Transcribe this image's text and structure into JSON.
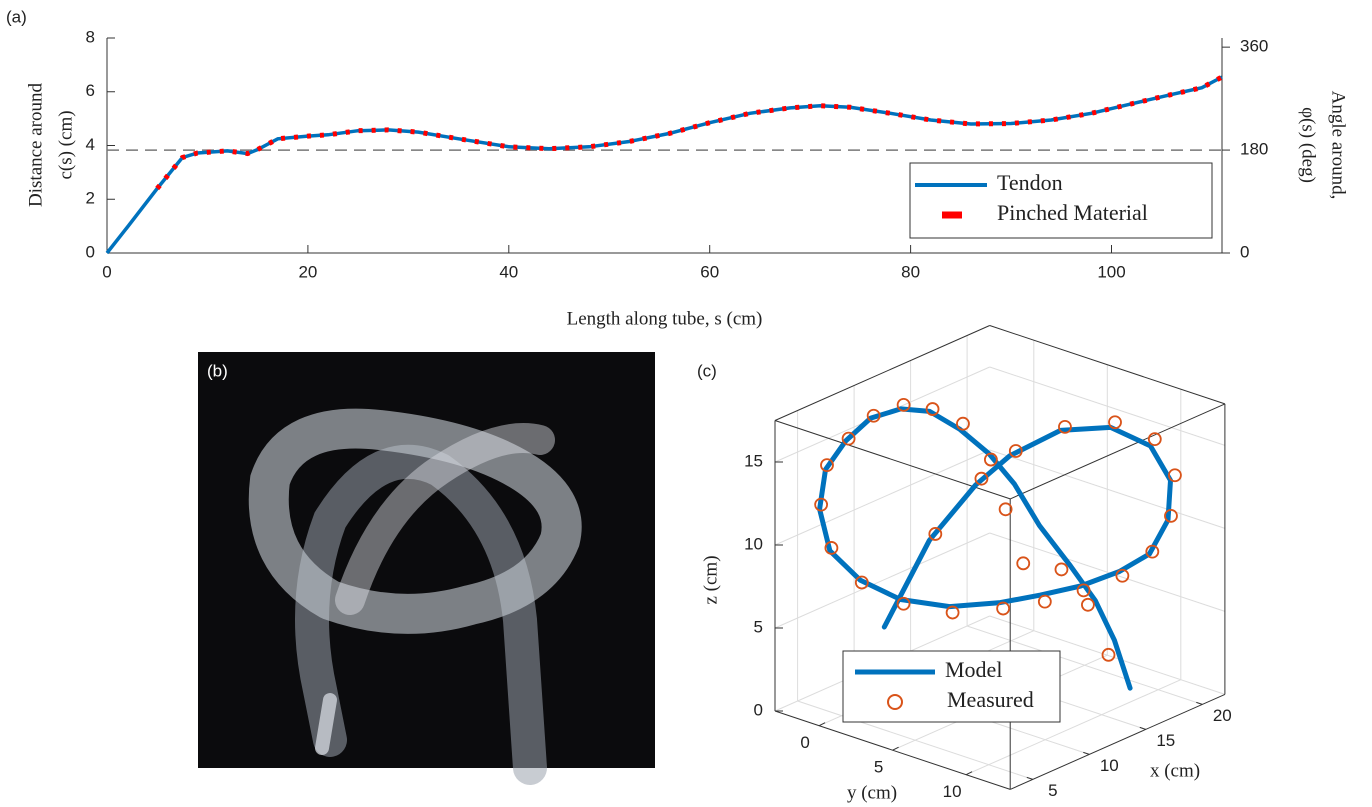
{
  "chart_data": [
    {
      "type": "line",
      "panel_label": "(a)",
      "xlabel": "Length along tube, s (cm)",
      "ylabel": [
        "Distance around",
        "c(s) (cm)"
      ],
      "y2label": [
        "Angle around,",
        "φ(s) (deg)"
      ],
      "xlim": [
        0,
        111
      ],
      "xticks": [
        0,
        20,
        40,
        60,
        80,
        100
      ],
      "ylim": [
        0,
        8
      ],
      "yticks": [
        0,
        2,
        4,
        6,
        8
      ],
      "y2lim": [
        0,
        376
      ],
      "y2ticks": [
        0,
        180,
        360
      ],
      "reference_line": {
        "value": 180,
        "axis": "y2",
        "color": "#777777"
      },
      "legend": "lower right",
      "x": [
        0,
        2,
        5,
        7.5,
        9,
        12,
        14,
        15,
        17,
        20,
        22,
        25,
        28,
        31,
        35,
        40,
        44,
        48,
        52,
        56,
        60,
        64,
        68,
        71,
        74,
        78,
        82,
        86,
        90,
        94,
        98,
        102,
        106,
        109,
        111
      ],
      "series": [
        {
          "name": "Tendon",
          "color": "#0072BD",
          "style": "solid",
          "values": [
            0,
            0.95,
            2.4,
            3.55,
            3.72,
            3.8,
            3.7,
            3.85,
            4.25,
            4.35,
            4.4,
            4.55,
            4.58,
            4.5,
            4.25,
            3.95,
            3.88,
            3.95,
            4.15,
            4.45,
            4.85,
            5.2,
            5.4,
            5.48,
            5.42,
            5.2,
            4.95,
            4.8,
            4.82,
            4.95,
            5.2,
            5.55,
            5.9,
            6.15,
            6.55
          ]
        },
        {
          "name": "Pinched Material",
          "color": "#FF0000",
          "style": "dashed",
          "values": [
            null,
            null,
            2.4,
            3.55,
            3.72,
            3.8,
            3.7,
            3.85,
            4.25,
            4.35,
            4.4,
            4.55,
            4.58,
            4.5,
            4.25,
            3.95,
            3.88,
            3.95,
            4.15,
            4.45,
            4.85,
            5.2,
            5.4,
            5.48,
            5.42,
            5.2,
            4.95,
            4.8,
            4.82,
            4.95,
            5.2,
            5.55,
            5.9,
            6.15,
            6.55
          ]
        }
      ]
    },
    {
      "type": "line3d",
      "panel_label": "(c)",
      "xlabel": "x (cm)",
      "ylabel": "y (cm)",
      "zlabel": "z (cm)",
      "xlim": [
        3,
        22
      ],
      "xticks": [
        5,
        10,
        15,
        20
      ],
      "ylim": [
        -3,
        13
      ],
      "yticks": [
        0,
        5,
        10
      ],
      "zlim": [
        0,
        17.5
      ],
      "zticks": [
        0,
        5,
        10,
        15
      ],
      "grid": true,
      "legend": "lower center",
      "series": [
        {
          "name": "Model",
          "mode": "line",
          "color": "#0072BD",
          "x": [
            5,
            6,
            8,
            10,
            15,
            18,
            21,
            22,
            21,
            20,
            18,
            16,
            14,
            12,
            10,
            8,
            6,
            5,
            5,
            5,
            6,
            9,
            11,
            12,
            13,
            13,
            13,
            13,
            13,
            13,
            13,
            14
          ],
          "y": [
            2.9,
            5.2,
            6.8,
            7.6,
            7.2,
            8.3,
            8.7,
            9.3,
            9.9,
            9.4,
            8.9,
            7.8,
            6.6,
            5.4,
            3.5,
            1.7,
            0.5,
            -0.8,
            -1.5,
            -1.1,
            -0.5,
            -1.1,
            -0.6,
            0.6,
            1.9,
            3.9,
            5.6,
            7.3,
            9.4,
            11.1,
            12.4,
            12.7
          ],
          "z": [
            6.2,
            11.8,
            15.0,
            16.4,
            16.3,
            15.9,
            14.0,
            11.8,
            9.9,
            8.0,
            7.4,
            6.8,
            6.5,
            6.3,
            6.1,
            6.6,
            8.0,
            9.7,
            12.0,
            14.5,
            16.1,
            16.4,
            16.5,
            16.4,
            15.4,
            14.5,
            13.2,
            11.2,
            9.4,
            7.8,
            5.8,
            2.7
          ]
        },
        {
          "name": "Measured",
          "mode": "markers",
          "color": "#D95319",
          "x": [
            6,
            8,
            10,
            15,
            18,
            21,
            22,
            21,
            20,
            18,
            16,
            14,
            12,
            10,
            8,
            6,
            5,
            5,
            5,
            6,
            9,
            11,
            12,
            13,
            13,
            13,
            13,
            13,
            13,
            13
          ],
          "y": [
            5.6,
            7.2,
            8.0,
            7.5,
            8.6,
            9.0,
            9.6,
            10.1,
            9.6,
            9.1,
            8.0,
            6.9,
            5.6,
            3.7,
            1.9,
            0.6,
            -0.7,
            -1.4,
            -1.0,
            -0.3,
            -0.9,
            -0.4,
            0.8,
            2.1,
            4.0,
            5.0,
            6.2,
            8.8,
            10.6,
            12.0
          ],
          "z": [
            12.3,
            15.5,
            16.8,
            16.6,
            16.3,
            14.5,
            12.2,
            10.2,
            8.2,
            7.2,
            6.6,
            6.2,
            6.0,
            5.8,
            6.4,
            7.9,
            9.9,
            12.3,
            14.8,
            16.3,
            16.6,
            16.8,
            16.6,
            15.8,
            14.2,
            11.5,
            8.6,
            9.0,
            7.4,
            4.8
          ]
        }
      ]
    }
  ],
  "photo": {
    "label": "(b)"
  }
}
